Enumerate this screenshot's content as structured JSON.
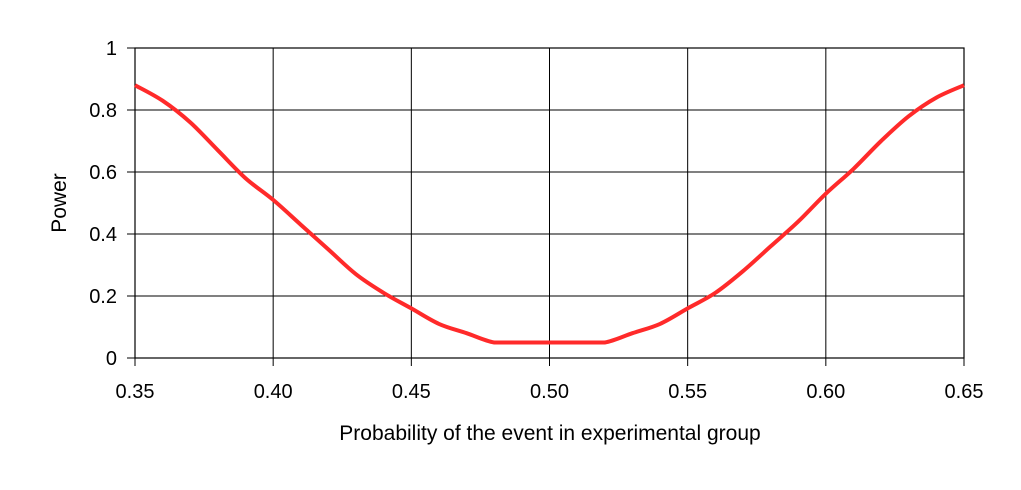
{
  "chart_data": {
    "type": "line",
    "title": "",
    "xlabel": "Probability of the event in experimental group",
    "ylabel": "Power",
    "xlim": [
      0.35,
      0.65
    ],
    "ylim": [
      0,
      1
    ],
    "x_ticks": [
      "0.35",
      "0.40",
      "0.45",
      "0.50",
      "0.55",
      "0.60",
      "0.65"
    ],
    "y_ticks": [
      "0",
      "0.2",
      "0.4",
      "0.6",
      "0.8",
      "1"
    ],
    "grid": true,
    "legend": "none",
    "series": [
      {
        "color": "#ff2a2a",
        "x": [
          0.35,
          0.36,
          0.37,
          0.38,
          0.39,
          0.4,
          0.41,
          0.42,
          0.43,
          0.44,
          0.45,
          0.46,
          0.47,
          0.48,
          0.49,
          0.5,
          0.51,
          0.52,
          0.53,
          0.54,
          0.55,
          0.56,
          0.57,
          0.58,
          0.59,
          0.6,
          0.61,
          0.62,
          0.63,
          0.64,
          0.65
        ],
        "y": [
          0.88,
          0.83,
          0.76,
          0.67,
          0.58,
          0.51,
          0.43,
          0.35,
          0.27,
          0.21,
          0.16,
          0.11,
          0.08,
          0.05,
          0.05,
          0.05,
          0.05,
          0.05,
          0.08,
          0.11,
          0.16,
          0.21,
          0.28,
          0.36,
          0.44,
          0.53,
          0.61,
          0.7,
          0.78,
          0.84,
          0.88
        ]
      }
    ]
  }
}
